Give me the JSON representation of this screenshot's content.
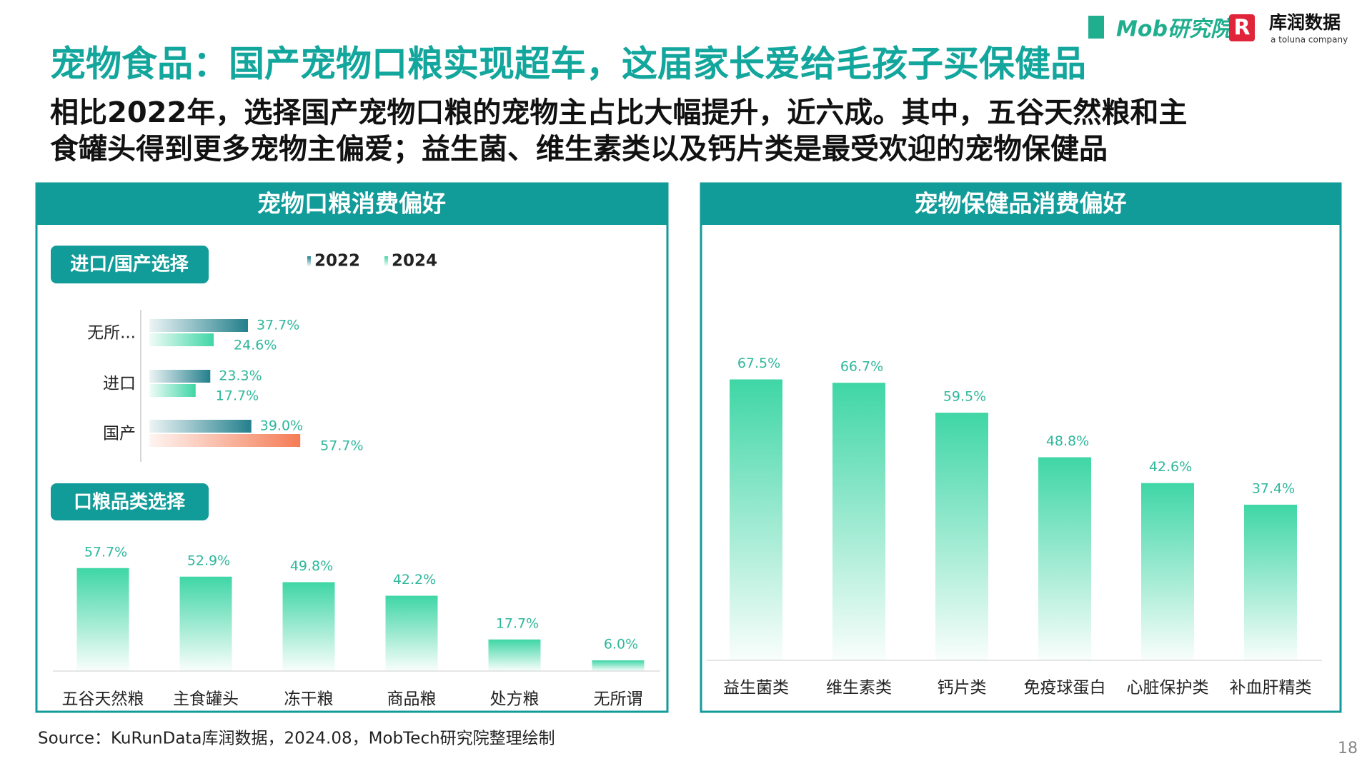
{
  "header": {
    "title": "宠物食品：国产宠物口粮实现超车，这届家长爱给毛孩子买保健品",
    "subtitle": [
      "相比2022年，选择国产宠物口粮的宠物主占比大幅提升，近六成。其中，五谷天然粮和主",
      "食罐头得到更多宠物主偏爱；益生菌、维生素类以及钙片类是最受欢迎的宠物保健品"
    ],
    "brand_mob": "Mob研究院",
    "brand_kurun": "库润数据",
    "brand_tagline": "a toluna company"
  },
  "panels": [
    "宠物口粮消费偏好",
    "宠物保健品消费偏好"
  ],
  "chart_data": [
    {
      "type": "hbar",
      "title": "进口/国产选择",
      "categories": [
        "无所...",
        "进口",
        "国产"
      ],
      "series": [
        {
          "name": "2022",
          "color": "#237f8c",
          "values": [
            37.7,
            23.3,
            39.0
          ],
          "value_labels": [
            "37.7%",
            "23.3%",
            "39.0%"
          ]
        },
        {
          "name": "2024",
          "color": "#3fd6a5",
          "values": [
            24.6,
            17.7,
            57.7
          ],
          "value_labels": [
            "24.6%",
            "17.7%",
            "57.7%"
          ],
          "highlight_index": 2,
          "highlight_color": "#f47c55"
        }
      ],
      "xlim": [
        0,
        100
      ]
    },
    {
      "type": "bar",
      "title": "口粮品类选择",
      "categories": [
        "五谷天然粮",
        "主食罐头",
        "冻干粮",
        "商品粮",
        "处方粮",
        "无所谓"
      ],
      "values": [
        57.7,
        52.9,
        49.8,
        42.2,
        17.7,
        6.0
      ],
      "value_labels": [
        "57.7%",
        "52.9%",
        "49.8%",
        "42.2%",
        "17.7%",
        "6.0%"
      ],
      "color": "#3fd6a5",
      "ylim": [
        0,
        100
      ]
    },
    {
      "type": "bar",
      "categories": [
        "益生菌类",
        "维生素类",
        "钙片类",
        "免疫球蛋白",
        "心脏保护类",
        "补血肝精类"
      ],
      "values": [
        67.5,
        66.7,
        59.5,
        48.8,
        42.6,
        37.4
      ],
      "value_labels": [
        "67.5%",
        "66.7%",
        "59.5%",
        "48.8%",
        "42.6%",
        "37.4%"
      ],
      "color": "#3fd6a5",
      "ylim": [
        0,
        100
      ]
    }
  ],
  "footer": {
    "source": "Source：KuRunData库润数据，2024.08，MobTech研究院整理绘制",
    "page": "18"
  }
}
